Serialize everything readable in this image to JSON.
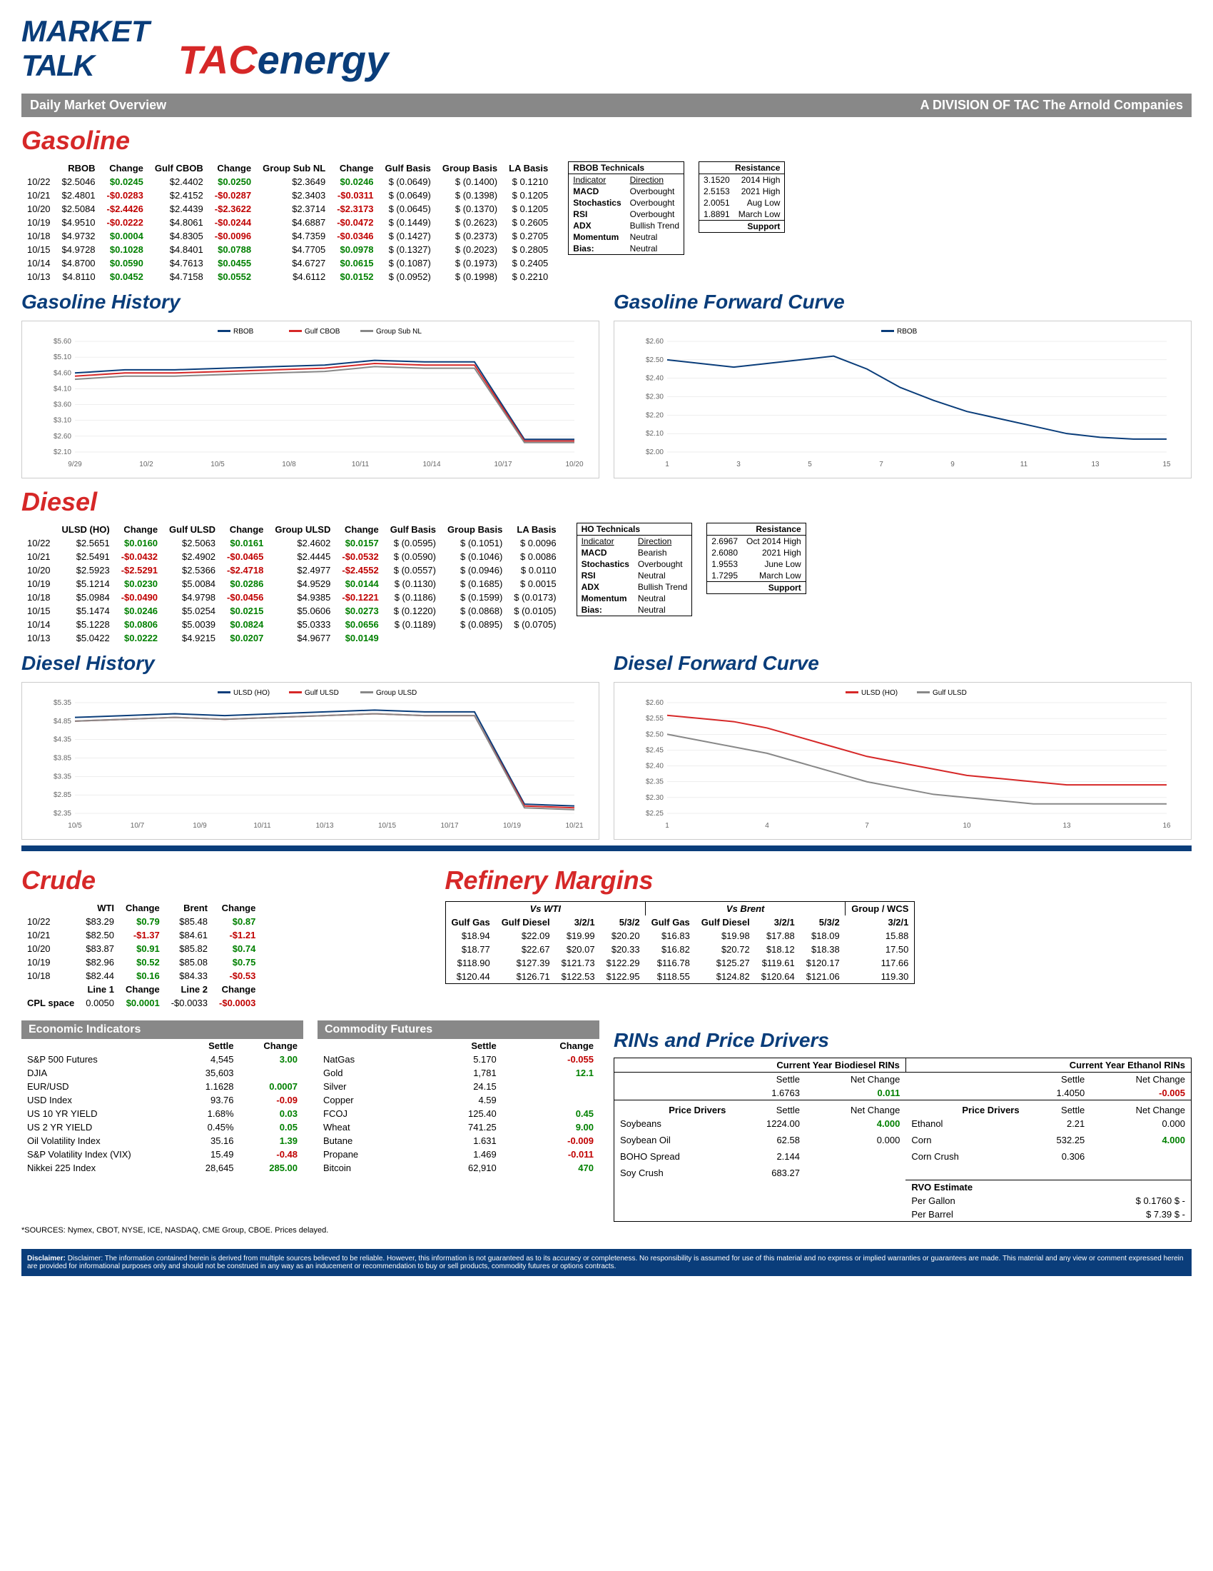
{
  "header": {
    "market_label": "MARKET",
    "talk_label": "TALK",
    "subtitle": "Daily Market Overview",
    "tac_label": "TAC",
    "energy_label": "energy",
    "division_label": "A DIVISION OF TAC The Arnold Companies"
  },
  "gasoline": {
    "title": "Gasoline",
    "headers": [
      "",
      "RBOB",
      "Change",
      "Gulf CBOB",
      "Change",
      "Group Sub NL",
      "Change",
      "Gulf Basis",
      "Group Basis",
      "LA Basis"
    ],
    "rows": [
      [
        "10/22",
        "$2.5046",
        "$0.0245",
        "$2.4402",
        "$0.0250",
        "$2.3649",
        "$0.0246",
        "$ (0.0649)",
        "$     (0.1400)",
        "$     0.1210"
      ],
      [
        "10/21",
        "$2.4801",
        "-$0.0283",
        "$2.4152",
        "-$0.0287",
        "$2.3403",
        "-$0.0311",
        "$ (0.0649)",
        "$     (0.1398)",
        "$     0.1205"
      ],
      [
        "10/20",
        "$2.5084",
        "-$2.4426",
        "$2.4439",
        "-$2.3622",
        "$2.3714",
        "-$2.3173",
        "$ (0.0645)",
        "$     (0.1370)",
        "$     0.1205"
      ],
      [
        "10/19",
        "$4.9510",
        "-$0.0222",
        "$4.8061",
        "-$0.0244",
        "$4.6887",
        "-$0.0472",
        "$ (0.1449)",
        "$     (0.2623)",
        "$     0.2605"
      ],
      [
        "10/18",
        "$4.9732",
        "$0.0004",
        "$4.8305",
        "-$0.0096",
        "$4.7359",
        "-$0.0346",
        "$ (0.1427)",
        "$     (0.2373)",
        "$     0.2705"
      ],
      [
        "10/15",
        "$4.9728",
        "$0.1028",
        "$4.8401",
        "$0.0788",
        "$4.7705",
        "$0.0978",
        "$ (0.1327)",
        "$     (0.2023)",
        "$     0.2805"
      ],
      [
        "10/14",
        "$4.8700",
        "$0.0590",
        "$4.7613",
        "$0.0455",
        "$4.6727",
        "$0.0615",
        "$ (0.1087)",
        "$     (0.1973)",
        "$     0.2405"
      ],
      [
        "10/13",
        "$4.8110",
        "$0.0452",
        "$4.7158",
        "$0.0552",
        "$4.6112",
        "$0.0152",
        "$ (0.0952)",
        "$     (0.1998)",
        "$     0.2210"
      ]
    ],
    "change_signs": [
      1,
      1,
      1,
      -1,
      -1,
      -1,
      -1,
      -1,
      -1,
      -1,
      -1,
      -1,
      1,
      -1,
      -1,
      1,
      1,
      1,
      1,
      1,
      1,
      1,
      1,
      1
    ],
    "technicals": {
      "title": "RBOB Technicals",
      "rows": [
        [
          "Indicator",
          "Direction"
        ],
        [
          "MACD",
          "Overbought"
        ],
        [
          "Stochastics",
          "Overbought"
        ],
        [
          "RSI",
          "Overbought"
        ],
        [
          "ADX",
          "Bullish Trend"
        ],
        [
          "Momentum",
          "Neutral"
        ],
        [
          "Bias:",
          "Neutral"
        ]
      ]
    },
    "resistance": {
      "title": "Resistance",
      "rows": [
        [
          "3.1520",
          "2014 High"
        ],
        [
          "2.5153",
          "2021 High"
        ],
        [
          "2.0051",
          "Aug Low"
        ],
        [
          "1.8891",
          "March Low"
        ]
      ],
      "support_label": "Support"
    },
    "history_chart": {
      "title": "Gasoline History",
      "legend": [
        {
          "label": "RBOB",
          "color": "#0a3d7a"
        },
        {
          "label": "Gulf CBOB",
          "color": "#d62828"
        },
        {
          "label": "Group Sub NL",
          "color": "#888"
        }
      ],
      "xlabels": [
        "9/29",
        "10/2",
        "10/5",
        "10/8",
        "10/11",
        "10/14",
        "10/17",
        "10/20"
      ],
      "ylabels": [
        "$2.10",
        "$2.60",
        "$3.10",
        "$3.60",
        "$4.10",
        "$4.60",
        "$5.10",
        "$5.60"
      ],
      "ymin": 2.1,
      "ymax": 5.6,
      "series": [
        {
          "color": "#0a3d7a",
          "values": [
            4.6,
            4.7,
            4.7,
            4.75,
            4.8,
            4.85,
            5.0,
            4.95,
            4.95,
            2.5,
            2.5
          ]
        },
        {
          "color": "#d62828",
          "values": [
            4.5,
            4.6,
            4.6,
            4.65,
            4.7,
            4.75,
            4.9,
            4.85,
            4.85,
            2.45,
            2.45
          ]
        },
        {
          "color": "#888",
          "values": [
            4.4,
            4.5,
            4.5,
            4.55,
            4.6,
            4.65,
            4.8,
            4.75,
            4.75,
            2.4,
            2.4
          ]
        }
      ]
    },
    "forward_chart": {
      "title": "Gasoline Forward Curve",
      "legend": [
        {
          "label": "RBOB",
          "color": "#0a3d7a"
        }
      ],
      "xlabels": [
        "1",
        "3",
        "5",
        "7",
        "9",
        "11",
        "13",
        "15"
      ],
      "ylabels": [
        "$2.00",
        "$2.10",
        "$2.20",
        "$2.30",
        "$2.40",
        "$2.50",
        "$2.60"
      ],
      "ymin": 2.0,
      "ymax": 2.6,
      "series": [
        {
          "color": "#0a3d7a",
          "values": [
            2.5,
            2.48,
            2.46,
            2.48,
            2.5,
            2.52,
            2.45,
            2.35,
            2.28,
            2.22,
            2.18,
            2.14,
            2.1,
            2.08,
            2.07,
            2.07
          ]
        }
      ]
    }
  },
  "diesel": {
    "title": "Diesel",
    "headers": [
      "",
      "ULSD (HO)",
      "Change",
      "Gulf ULSD",
      "Change",
      "Group ULSD",
      "Change",
      "Gulf Basis",
      "Group Basis",
      "LA Basis"
    ],
    "rows": [
      [
        "10/22",
        "$2.5651",
        "$0.0160",
        "$2.5063",
        "$0.0161",
        "$2.4602",
        "$0.0157",
        "$ (0.0595)",
        "$     (0.1051)",
        "$     0.0096"
      ],
      [
        "10/21",
        "$2.5491",
        "-$0.0432",
        "$2.4902",
        "-$0.0465",
        "$2.4445",
        "-$0.0532",
        "$ (0.0590)",
        "$     (0.1046)",
        "$     0.0086"
      ],
      [
        "10/20",
        "$2.5923",
        "-$2.5291",
        "$2.5366",
        "-$2.4718",
        "$2.4977",
        "-$2.4552",
        "$ (0.0557)",
        "$     (0.0946)",
        "$     0.0110"
      ],
      [
        "10/19",
        "$5.1214",
        "$0.0230",
        "$5.0084",
        "$0.0286",
        "$4.9529",
        "$0.0144",
        "$ (0.1130)",
        "$     (0.1685)",
        "$     0.0015"
      ],
      [
        "10/18",
        "$5.0984",
        "-$0.0490",
        "$4.9798",
        "-$0.0456",
        "$4.9385",
        "-$0.1221",
        "$ (0.1186)",
        "$     (0.1599)",
        "$     (0.0173)"
      ],
      [
        "10/15",
        "$5.1474",
        "$0.0246",
        "$5.0254",
        "$0.0215",
        "$5.0606",
        "$0.0273",
        "$ (0.1220)",
        "$     (0.0868)",
        "$     (0.0105)"
      ],
      [
        "10/14",
        "$5.1228",
        "$0.0806",
        "$5.0039",
        "$0.0824",
        "$5.0333",
        "$0.0656",
        "$ (0.1189)",
        "$     (0.0895)",
        "$     (0.0705)"
      ],
      [
        "10/13",
        "$5.0422",
        "$0.0222",
        "$4.9215",
        "$0.0207",
        "$4.9677",
        "$0.0149",
        "",
        "",
        ""
      ]
    ],
    "change_signs": [
      1,
      1,
      1,
      -1,
      -1,
      -1,
      -1,
      -1,
      -1,
      1,
      1,
      1,
      -1,
      -1,
      -1,
      1,
      1,
      1,
      1,
      1,
      1,
      1,
      1,
      1
    ],
    "technicals": {
      "title": "HO Technicals",
      "rows": [
        [
          "Indicator",
          "Direction"
        ],
        [
          "MACD",
          "Bearish"
        ],
        [
          "Stochastics",
          "Overbought"
        ],
        [
          "RSI",
          "Neutral"
        ],
        [
          "ADX",
          "Bullish Trend"
        ],
        [
          "Momentum",
          "Neutral"
        ],
        [
          "Bias:",
          "Neutral"
        ]
      ]
    },
    "resistance": {
      "title": "Resistance",
      "rows": [
        [
          "2.6967",
          "Oct 2014 High"
        ],
        [
          "2.6080",
          "2021 High"
        ],
        [
          "1.9553",
          "June Low"
        ],
        [
          "1.7295",
          "March Low"
        ]
      ],
      "support_label": "Support"
    },
    "history_chart": {
      "title": "Diesel History",
      "legend": [
        {
          "label": "ULSD (HO)",
          "color": "#0a3d7a"
        },
        {
          "label": "Gulf ULSD",
          "color": "#d62828"
        },
        {
          "label": "Group ULSD",
          "color": "#888"
        }
      ],
      "xlabels": [
        "10/5",
        "10/7",
        "10/9",
        "10/11",
        "10/13",
        "10/15",
        "10/17",
        "10/19",
        "10/21"
      ],
      "ylabels": [
        "$2.35",
        "$2.85",
        "$3.35",
        "$3.85",
        "$4.35",
        "$4.85",
        "$5.35"
      ],
      "ymin": 2.35,
      "ymax": 5.35,
      "series": [
        {
          "color": "#0a3d7a",
          "values": [
            4.95,
            5.0,
            5.05,
            5.0,
            5.05,
            5.1,
            5.15,
            5.1,
            5.1,
            2.6,
            2.55
          ]
        },
        {
          "color": "#d62828",
          "values": [
            4.85,
            4.9,
            4.95,
            4.9,
            4.95,
            5.0,
            5.05,
            5.0,
            5.0,
            2.55,
            2.5
          ]
        },
        {
          "color": "#888",
          "values": [
            4.85,
            4.9,
            4.95,
            4.9,
            4.95,
            5.0,
            5.05,
            5.0,
            5.0,
            2.5,
            2.45
          ]
        }
      ]
    },
    "forward_chart": {
      "title": "Diesel Forward Curve",
      "legend": [
        {
          "label": "ULSD (HO)",
          "color": "#d62828"
        },
        {
          "label": "Gulf ULSD",
          "color": "#888"
        }
      ],
      "xlabels": [
        "1",
        "4",
        "7",
        "10",
        "13",
        "16"
      ],
      "ylabels": [
        "$2.25",
        "$2.30",
        "$2.35",
        "$2.40",
        "$2.45",
        "$2.50",
        "$2.55",
        "$2.60"
      ],
      "ymin": 2.25,
      "ymax": 2.6,
      "series": [
        {
          "color": "#d62828",
          "values": [
            2.56,
            2.55,
            2.54,
            2.52,
            2.49,
            2.46,
            2.43,
            2.41,
            2.39,
            2.37,
            2.36,
            2.35,
            2.34,
            2.34,
            2.34,
            2.34
          ]
        },
        {
          "color": "#888",
          "values": [
            2.5,
            2.48,
            2.46,
            2.44,
            2.41,
            2.38,
            2.35,
            2.33,
            2.31,
            2.3,
            2.29,
            2.28,
            2.28,
            2.28,
            2.28,
            2.28
          ]
        }
      ]
    }
  },
  "crude": {
    "title": "Crude",
    "headers": [
      "",
      "WTI",
      "Change",
      "Brent",
      "Change"
    ],
    "rows": [
      [
        "10/22",
        "$83.29",
        "$0.79",
        "$85.48",
        "$0.87"
      ],
      [
        "10/21",
        "$82.50",
        "-$1.37",
        "$84.61",
        "-$1.21"
      ],
      [
        "10/20",
        "$83.87",
        "$0.91",
        "$85.82",
        "$0.74"
      ],
      [
        "10/19",
        "$82.96",
        "$0.52",
        "$85.08",
        "$0.75"
      ],
      [
        "10/18",
        "$82.44",
        "$0.16",
        "$84.33",
        "-$0.53"
      ]
    ],
    "change_signs": [
      1,
      1,
      -1,
      -1,
      1,
      1,
      1,
      1,
      1,
      -1
    ],
    "cpl": {
      "label": "CPL space",
      "line1_label": "Line 1",
      "line1_val": "0.0050",
      "line1_chg": "$0.0001",
      "line2_label": "Line 2",
      "line2_val": "-$0.0033",
      "line2_chg": "-$0.0003"
    }
  },
  "margins": {
    "title": "Refinery Margins",
    "vswti_label": "Vs WTI",
    "vsbrent_label": "Vs Brent",
    "groupwcs_label": "Group / WCS",
    "headers": [
      "Gulf Gas",
      "Gulf Diesel",
      "3/2/1",
      "5/3/2",
      "Gulf Gas",
      "Gulf Diesel",
      "3/2/1",
      "5/3/2",
      "3/2/1"
    ],
    "rows": [
      [
        "$18.94",
        "$22.09",
        "$19.99",
        "$20.20",
        "$16.83",
        "$19.98",
        "$17.88",
        "$18.09",
        "15.88"
      ],
      [
        "$18.77",
        "$22.67",
        "$20.07",
        "$20.33",
        "$16.82",
        "$20.72",
        "$18.12",
        "$18.38",
        "17.50"
      ],
      [
        "$118.90",
        "$127.39",
        "$121.73",
        "$122.29",
        "$116.78",
        "$125.27",
        "$119.61",
        "$120.17",
        "117.66"
      ],
      [
        "$120.44",
        "$126.71",
        "$122.53",
        "$122.95",
        "$118.55",
        "$124.82",
        "$120.64",
        "$121.06",
        "119.30"
      ]
    ]
  },
  "economic": {
    "title": "Economic Indicators",
    "headers": [
      "",
      "Settle",
      "Change"
    ],
    "rows": [
      [
        "S&P 500 Futures",
        "4,545",
        "3.00",
        1
      ],
      [
        "DJIA",
        "35,603",
        "",
        0
      ],
      [
        "EUR/USD",
        "1.1628",
        "0.0007",
        1
      ],
      [
        "USD Index",
        "93.76",
        "-0.09",
        -1
      ],
      [
        "US 10 YR YIELD",
        "1.68%",
        "0.03",
        1
      ],
      [
        "US 2 YR YIELD",
        "0.45%",
        "0.05",
        1
      ],
      [
        "Oil Volatility Index",
        "35.16",
        "1.39",
        1
      ],
      [
        "S&P Volatility Index (VIX)",
        "15.49",
        "-0.48",
        -1
      ],
      [
        "Nikkei 225 Index",
        "28,645",
        "285.00",
        1
      ]
    ]
  },
  "commodity": {
    "title": "Commodity Futures",
    "headers": [
      "",
      "Settle",
      "Change"
    ],
    "rows": [
      [
        "NatGas",
        "5.170",
        "-0.055",
        -1
      ],
      [
        "Gold",
        "1,781",
        "12.1",
        1
      ],
      [
        "Silver",
        "24.15",
        "",
        0
      ],
      [
        "Copper",
        "4.59",
        "",
        0
      ],
      [
        "FCOJ",
        "125.40",
        "0.45",
        1
      ],
      [
        "Wheat",
        "741.25",
        "9.00",
        1
      ],
      [
        "Butane",
        "1.631",
        "-0.009",
        -1
      ],
      [
        "Propane",
        "1.469",
        "-0.011",
        -1
      ],
      [
        "Bitcoin",
        "62,910",
        "470",
        1
      ]
    ]
  },
  "rins": {
    "title": "RINs and Price Drivers",
    "bio_label": "Current Year Biodiesel RINs",
    "eth_label": "Current Year Ethanol RINs",
    "settle_label": "Settle",
    "netchg_label": "Net Change",
    "bio_settle": "1.6763",
    "bio_chg": "0.011",
    "eth_settle": "1.4050",
    "eth_chg": "-0.005",
    "pd_label": "Price Drivers",
    "left_rows": [
      [
        "Soybeans",
        "1224.00",
        "4.000",
        1
      ],
      [
        "",
        "",
        "",
        0
      ],
      [
        "Soybean Oil",
        "62.58",
        "0.000",
        0
      ],
      [
        "",
        "",
        "",
        0
      ],
      [
        "BOHO Spread",
        "2.144",
        "",
        0
      ],
      [
        "",
        "",
        "",
        0
      ],
      [
        "Soy Crush",
        "683.27",
        "",
        0
      ]
    ],
    "right_rows": [
      [
        "Ethanol",
        "2.21",
        "0.000",
        0
      ],
      [
        "",
        "",
        "",
        0
      ],
      [
        "Corn",
        "532.25",
        "4.000",
        1
      ],
      [
        "",
        "",
        "",
        0
      ],
      [
        "Corn Crush",
        "0.306",
        "",
        0
      ]
    ],
    "rvo_label": "RVO Estimate",
    "pergal_label": "Per Gallon",
    "pergal_val": "$     0.1760   $         -",
    "perbbl_label": "Per Barrel",
    "perbbl_val": "$        7.39    $         -"
  },
  "sources": "*SOURCES: Nymex, CBOT, NYSE, ICE, NASDAQ, CME Group, CBOE.   Prices delayed.",
  "disclaimer": "Disclaimer: The information contained herein is derived from multiple sources believed to be reliable. However, this information is not guaranteed as to its accuracy or completeness. No responsibility is assumed for use of this material and no express or implied warranties or guarantees are made. This material and any view or comment expressed herein are provided for informational purposes only and should not be construed in any way as an inducement or recommendation to buy or sell products, commodity futures or options contracts."
}
